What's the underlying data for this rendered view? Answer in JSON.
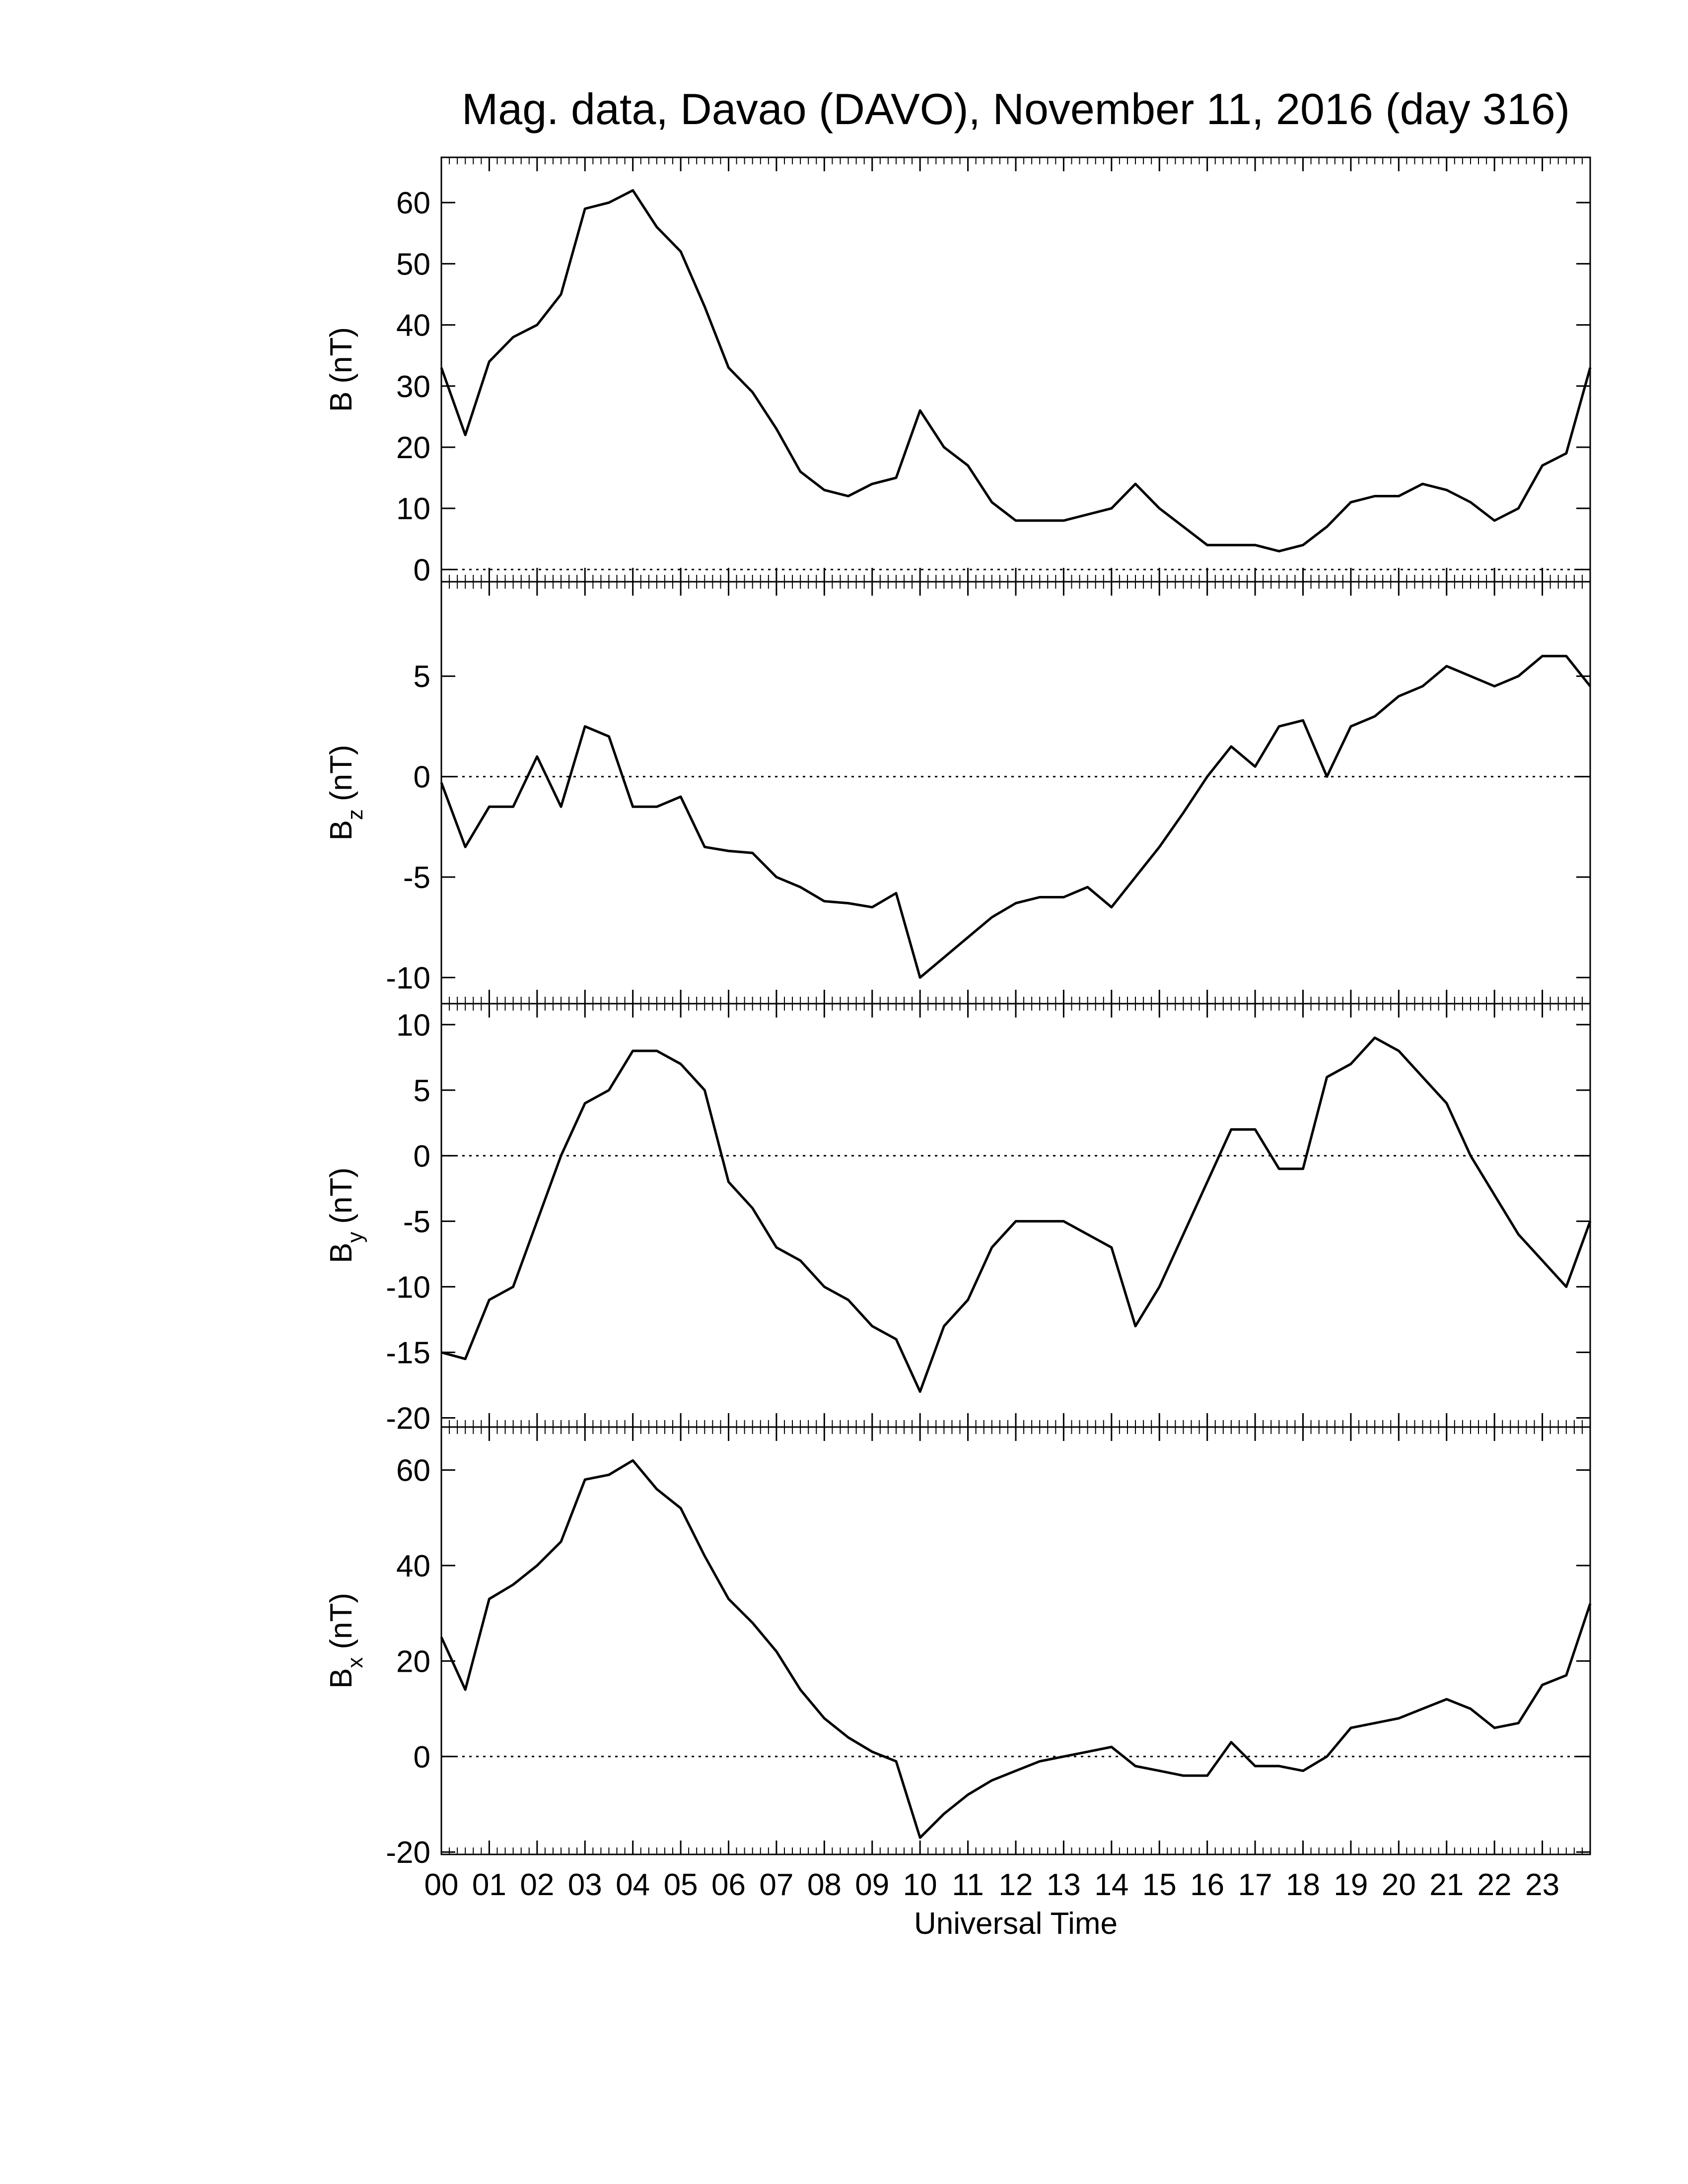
{
  "chart_data": [
    {
      "type": "line",
      "title": "Mag. data, Davao (DAVO), November 11, 2016 (day 316)",
      "ylabel": {
        "symbol": "B",
        "unit": "(nT)"
      },
      "x": [
        0,
        0.5,
        1,
        1.5,
        2,
        2.5,
        3,
        3.5,
        4,
        4.5,
        5,
        5.5,
        6,
        6.5,
        7,
        7.5,
        8,
        8.5,
        9,
        9.5,
        10,
        10.5,
        11,
        11.5,
        12,
        12.5,
        13,
        13.5,
        14,
        14.5,
        15,
        15.5,
        16,
        16.5,
        17,
        17.5,
        18,
        18.5,
        19,
        19.5,
        20,
        20.5,
        21,
        21.5,
        22,
        22.5,
        23,
        23.5,
        24
      ],
      "values": [
        33,
        22,
        34,
        38,
        40,
        45,
        59,
        60,
        62,
        56,
        52,
        43,
        33,
        29,
        23,
        16,
        13,
        12,
        14,
        15,
        26,
        20,
        17,
        11,
        8,
        8,
        8,
        9,
        10,
        14,
        10,
        7,
        4,
        4,
        4,
        3,
        4,
        7,
        11,
        12,
        12,
        14,
        13,
        11,
        8,
        10,
        17,
        19,
        33
      ],
      "color": "#000000",
      "xlim": [
        0,
        24
      ],
      "ylim": [
        -2,
        67.4
      ],
      "yticks": [
        0,
        10,
        20,
        30,
        40,
        50,
        60
      ],
      "zero_line": true
    },
    {
      "type": "line",
      "ylabel": {
        "symbol": "B",
        "subscript": "z",
        "unit": "(nT)"
      },
      "x": [
        0,
        0.5,
        1,
        1.5,
        2,
        2.5,
        3,
        3.5,
        4,
        4.5,
        5,
        5.5,
        6,
        6.5,
        7,
        7.5,
        8,
        8.5,
        9,
        9.5,
        10,
        10.5,
        11,
        11.5,
        12,
        12.5,
        13,
        13.5,
        14,
        14.5,
        15,
        15.5,
        16,
        16.5,
        17,
        17.5,
        18,
        18.5,
        19,
        19.5,
        20,
        20.5,
        21,
        21.5,
        22,
        22.5,
        23,
        23.5,
        24
      ],
      "values": [
        -0.3,
        -3.5,
        -1.5,
        -1.5,
        1,
        -1.5,
        2.5,
        2,
        -1.5,
        -1.5,
        -1,
        -3.5,
        -3.7,
        -3.8,
        -5,
        -5.5,
        -6.2,
        -6.3,
        -6.5,
        -5.8,
        -10,
        -9,
        -8,
        -7,
        -6.3,
        -6,
        -6,
        -5.5,
        -6.5,
        -5,
        -3.5,
        -1.8,
        0,
        1.5,
        0.5,
        2.5,
        2.8,
        0,
        2.5,
        3,
        4,
        4.5,
        5.5,
        5,
        4.5,
        5,
        6,
        6,
        4.5
      ],
      "color": "#000000",
      "xlim": [
        0,
        24
      ],
      "ylim": [
        -11.3,
        9.7
      ],
      "yticks": [
        -10,
        -5,
        0,
        5
      ],
      "zero_line": true
    },
    {
      "type": "line",
      "ylabel": {
        "symbol": "B",
        "subscript": "y",
        "unit": "(nT)"
      },
      "x": [
        0,
        0.5,
        1,
        1.5,
        2,
        2.5,
        3,
        3.5,
        4,
        4.5,
        5,
        5.5,
        6,
        6.5,
        7,
        7.5,
        8,
        8.5,
        9,
        9.5,
        10,
        10.5,
        11,
        11.5,
        12,
        12.5,
        13,
        13.5,
        14,
        14.5,
        15,
        15.5,
        16,
        16.5,
        17,
        17.5,
        18,
        18.5,
        19,
        19.5,
        20,
        20.5,
        21,
        21.5,
        22,
        22.5,
        23,
        23.5,
        24
      ],
      "values": [
        -15,
        -15.5,
        -11,
        -10,
        -5,
        0,
        4,
        5,
        8,
        8,
        7,
        5,
        -2,
        -4,
        -7,
        -8,
        -10,
        -11,
        -13,
        -14,
        -18,
        -13,
        -11,
        -7,
        -5,
        -5,
        -5,
        -6,
        -7,
        -13,
        -10,
        -6,
        -2,
        2,
        2,
        -1,
        -1,
        6,
        7,
        9,
        8,
        6,
        4,
        0,
        -3,
        -6,
        -8,
        -10,
        -5
      ],
      "color": "#000000",
      "xlim": [
        0,
        24
      ],
      "ylim": [
        -20.7,
        11.6
      ],
      "yticks": [
        -20,
        -15,
        -10,
        -5,
        0,
        5,
        10
      ],
      "zero_line": true
    },
    {
      "type": "line",
      "ylabel": {
        "symbol": "B",
        "subscript": "x",
        "unit": "(nT)"
      },
      "xlabel": "Universal Time",
      "x": [
        0,
        0.5,
        1,
        1.5,
        2,
        2.5,
        3,
        3.5,
        4,
        4.5,
        5,
        5.5,
        6,
        6.5,
        7,
        7.5,
        8,
        8.5,
        9,
        9.5,
        10,
        10.5,
        11,
        11.5,
        12,
        12.5,
        13,
        13.5,
        14,
        14.5,
        15,
        15.5,
        16,
        16.5,
        17,
        17.5,
        18,
        18.5,
        19,
        19.5,
        20,
        20.5,
        21,
        21.5,
        22,
        22.5,
        23,
        23.5,
        24
      ],
      "values": [
        25,
        14,
        33,
        36,
        40,
        45,
        58,
        59,
        62,
        56,
        52,
        42,
        33,
        28,
        22,
        14,
        8,
        4,
        1,
        -1,
        -17,
        -12,
        -8,
        -5,
        -3,
        -1,
        0,
        1,
        2,
        -2,
        -3,
        -4,
        -4,
        3,
        -2,
        -2,
        -3,
        0,
        6,
        7,
        8,
        10,
        12,
        10,
        6,
        7,
        15,
        17,
        32
      ],
      "color": "#000000",
      "xlim": [
        0,
        24
      ],
      "ylim": [
        -20.5,
        69
      ],
      "yticks": [
        -20,
        0,
        20,
        40,
        60
      ],
      "zero_line": true,
      "xticks": [
        {
          "value": 0,
          "label": "00"
        },
        {
          "value": 1,
          "label": "01"
        },
        {
          "value": 2,
          "label": "02"
        },
        {
          "value": 3,
          "label": "03"
        },
        {
          "value": 4,
          "label": "04"
        },
        {
          "value": 5,
          "label": "05"
        },
        {
          "value": 6,
          "label": "06"
        },
        {
          "value": 7,
          "label": "07"
        },
        {
          "value": 8,
          "label": "08"
        },
        {
          "value": 9,
          "label": "09"
        },
        {
          "value": 10,
          "label": "10"
        },
        {
          "value": 11,
          "label": "11"
        },
        {
          "value": 12,
          "label": "12"
        },
        {
          "value": 13,
          "label": "13"
        },
        {
          "value": 14,
          "label": "14"
        },
        {
          "value": 15,
          "label": "15"
        },
        {
          "value": 16,
          "label": "16"
        },
        {
          "value": 17,
          "label": "17"
        },
        {
          "value": 18,
          "label": "18"
        },
        {
          "value": 19,
          "label": "19"
        },
        {
          "value": 20,
          "label": "20"
        },
        {
          "value": 21,
          "label": "21"
        },
        {
          "value": 22,
          "label": "22"
        },
        {
          "value": 23,
          "label": "23"
        }
      ],
      "xminor": 6
    }
  ]
}
